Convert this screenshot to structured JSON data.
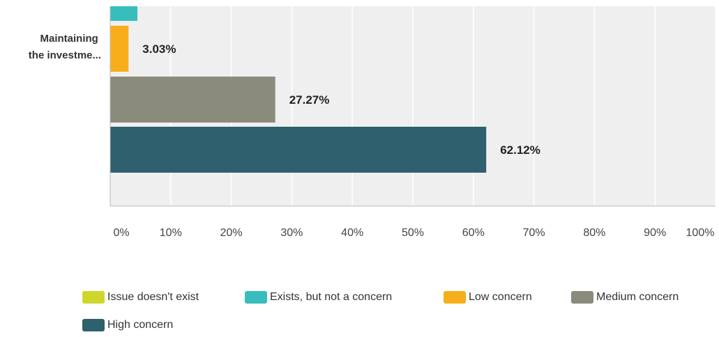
{
  "chart_data": {
    "type": "bar",
    "orientation": "horizontal",
    "category": "Maintaining the investme...",
    "category_lines": [
      "Maintaining",
      "the investme..."
    ],
    "x_ticks": [
      "0%",
      "10%",
      "20%",
      "30%",
      "40%",
      "50%",
      "60%",
      "70%",
      "80%",
      "90%",
      "100%"
    ],
    "xlim": [
      0,
      100
    ],
    "grid": true,
    "legend_position": "bottom",
    "series": [
      {
        "name": "Issue doesn't exist",
        "value": 0,
        "label": "",
        "color": "#cfd62b"
      },
      {
        "name": "Exists, but not a concern",
        "value": 4.5,
        "label": "",
        "color": "#38bdbd"
      },
      {
        "name": "Low concern",
        "value": 3.03,
        "label": "3.03%",
        "color": "#f6ae1a"
      },
      {
        "name": "Medium concern",
        "value": 27.27,
        "label": "27.27%",
        "color": "#8a8b7a"
      },
      {
        "name": "High concern",
        "value": 62.12,
        "label": "62.12%",
        "color": "#2f606e"
      }
    ]
  }
}
